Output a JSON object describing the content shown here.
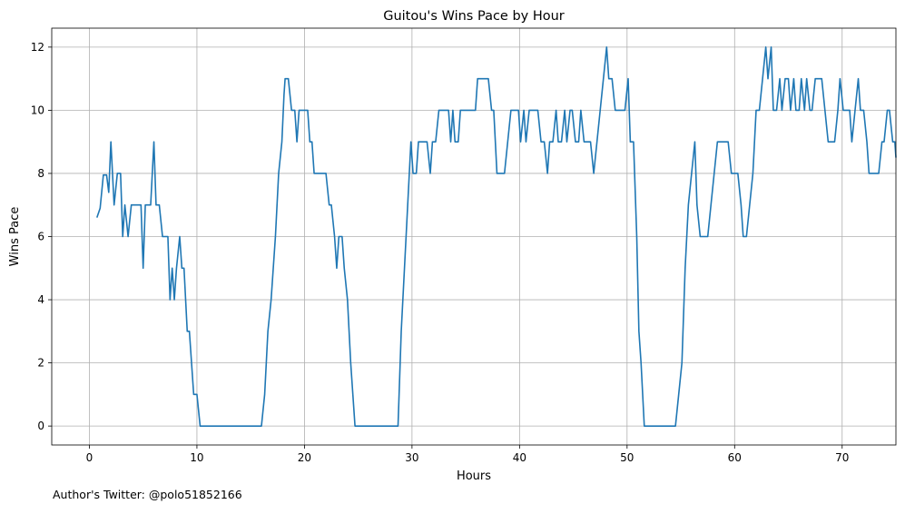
{
  "footnote": "Author's Twitter: @polo51852166",
  "chart_data": {
    "type": "line",
    "title": "Guitou's Wins Pace by Hour",
    "xlabel": "Hours",
    "ylabel": "Wins Pace",
    "xlim": [
      -3.5,
      75.0
    ],
    "ylim": [
      -0.6,
      12.6
    ],
    "xticks": [
      0,
      10,
      20,
      30,
      40,
      50,
      60,
      70
    ],
    "yticks": [
      0,
      2,
      4,
      6,
      8,
      10,
      12
    ],
    "grid": true,
    "series": [
      {
        "color": "#1f77b4",
        "points": [
          [
            0.7,
            6.6
          ],
          [
            1.0,
            6.9
          ],
          [
            1.3,
            7.95
          ],
          [
            1.6,
            7.95
          ],
          [
            1.8,
            7.4
          ],
          [
            2.0,
            9.0
          ],
          [
            2.3,
            7.0
          ],
          [
            2.6,
            8.0
          ],
          [
            2.9,
            8.0
          ],
          [
            3.1,
            6.0
          ],
          [
            3.3,
            7.0
          ],
          [
            3.6,
            6.0
          ],
          [
            3.9,
            7.0
          ],
          [
            4.2,
            7.0
          ],
          [
            4.5,
            7.0
          ],
          [
            4.8,
            7.0
          ],
          [
            5.0,
            5.0
          ],
          [
            5.2,
            7.0
          ],
          [
            5.5,
            7.0
          ],
          [
            5.7,
            7.0
          ],
          [
            6.0,
            9.0
          ],
          [
            6.2,
            7.0
          ],
          [
            6.5,
            7.0
          ],
          [
            6.8,
            6.0
          ],
          [
            7.0,
            6.0
          ],
          [
            7.3,
            6.0
          ],
          [
            7.5,
            4.0
          ],
          [
            7.7,
            5.0
          ],
          [
            7.9,
            4.0
          ],
          [
            8.1,
            5.0
          ],
          [
            8.4,
            6.0
          ],
          [
            8.6,
            5.0
          ],
          [
            8.8,
            5.0
          ],
          [
            9.1,
            3.0
          ],
          [
            9.3,
            3.0
          ],
          [
            9.5,
            2.0
          ],
          [
            9.7,
            1.0
          ],
          [
            10.0,
            1.0
          ],
          [
            10.3,
            0.0
          ],
          [
            16.0,
            0.0
          ],
          [
            16.3,
            1.0
          ],
          [
            16.6,
            3.0
          ],
          [
            16.9,
            4.0
          ],
          [
            17.3,
            6.0
          ],
          [
            17.6,
            8.0
          ],
          [
            17.9,
            9.0
          ],
          [
            18.1,
            10.5
          ],
          [
            18.2,
            11.0
          ],
          [
            18.5,
            11.0
          ],
          [
            18.8,
            10.0
          ],
          [
            19.1,
            10.0
          ],
          [
            19.3,
            9.0
          ],
          [
            19.5,
            10.0
          ],
          [
            19.8,
            10.0
          ],
          [
            20.1,
            10.0
          ],
          [
            20.3,
            10.0
          ],
          [
            20.5,
            9.0
          ],
          [
            20.7,
            9.0
          ],
          [
            20.9,
            8.0
          ],
          [
            21.3,
            8.0
          ],
          [
            21.7,
            8.0
          ],
          [
            22.0,
            8.0
          ],
          [
            22.3,
            7.0
          ],
          [
            22.5,
            7.0
          ],
          [
            22.8,
            6.0
          ],
          [
            23.0,
            5.0
          ],
          [
            23.2,
            6.0
          ],
          [
            23.5,
            6.0
          ],
          [
            23.7,
            5.0
          ],
          [
            24.0,
            4.0
          ],
          [
            24.3,
            2.0
          ],
          [
            24.5,
            1.0
          ],
          [
            24.7,
            0.0
          ],
          [
            28.7,
            0.0
          ],
          [
            29.0,
            3.0
          ],
          [
            29.3,
            5.0
          ],
          [
            29.6,
            7.0
          ],
          [
            29.9,
            9.0
          ],
          [
            30.1,
            8.0
          ],
          [
            30.4,
            8.0
          ],
          [
            30.6,
            9.0
          ],
          [
            31.0,
            9.0
          ],
          [
            31.4,
            9.0
          ],
          [
            31.7,
            8.0
          ],
          [
            31.9,
            9.0
          ],
          [
            32.2,
            9.0
          ],
          [
            32.5,
            10.0
          ],
          [
            32.8,
            10.0
          ],
          [
            33.1,
            10.0
          ],
          [
            33.4,
            10.0
          ],
          [
            33.6,
            9.0
          ],
          [
            33.8,
            10.0
          ],
          [
            34.0,
            9.0
          ],
          [
            34.3,
            9.0
          ],
          [
            34.5,
            10.0
          ],
          [
            34.8,
            10.0
          ],
          [
            35.2,
            10.0
          ],
          [
            35.6,
            10.0
          ],
          [
            35.9,
            10.0
          ],
          [
            36.1,
            11.0
          ],
          [
            36.4,
            11.0
          ],
          [
            36.8,
            11.0
          ],
          [
            37.1,
            11.0
          ],
          [
            37.4,
            10.0
          ],
          [
            37.6,
            10.0
          ],
          [
            37.9,
            8.0
          ],
          [
            38.3,
            8.0
          ],
          [
            38.6,
            8.0
          ],
          [
            38.9,
            9.0
          ],
          [
            39.2,
            10.0
          ],
          [
            39.6,
            10.0
          ],
          [
            39.9,
            10.0
          ],
          [
            40.1,
            9.0
          ],
          [
            40.4,
            10.0
          ],
          [
            40.6,
            9.0
          ],
          [
            40.9,
            10.0
          ],
          [
            41.1,
            10.0
          ],
          [
            41.4,
            10.0
          ],
          [
            41.7,
            10.0
          ],
          [
            42.0,
            9.0
          ],
          [
            42.3,
            9.0
          ],
          [
            42.6,
            8.0
          ],
          [
            42.8,
            9.0
          ],
          [
            43.1,
            9.0
          ],
          [
            43.4,
            10.0
          ],
          [
            43.6,
            9.0
          ],
          [
            43.9,
            9.0
          ],
          [
            44.2,
            10.0
          ],
          [
            44.4,
            9.0
          ],
          [
            44.7,
            10.0
          ],
          [
            44.9,
            10.0
          ],
          [
            45.2,
            9.0
          ],
          [
            45.5,
            9.0
          ],
          [
            45.7,
            10.0
          ],
          [
            46.0,
            9.0
          ],
          [
            46.3,
            9.0
          ],
          [
            46.6,
            9.0
          ],
          [
            46.9,
            8.0
          ],
          [
            47.2,
            9.0
          ],
          [
            47.5,
            10.0
          ],
          [
            47.8,
            11.0
          ],
          [
            48.1,
            12.0
          ],
          [
            48.3,
            11.0
          ],
          [
            48.6,
            11.0
          ],
          [
            48.9,
            10.0
          ],
          [
            49.2,
            10.0
          ],
          [
            49.5,
            10.0
          ],
          [
            49.8,
            10.0
          ],
          [
            50.1,
            11.0
          ],
          [
            50.3,
            9.0
          ],
          [
            50.6,
            9.0
          ],
          [
            50.9,
            6.0
          ],
          [
            51.1,
            3.0
          ],
          [
            51.3,
            2.0
          ],
          [
            51.6,
            0.0
          ],
          [
            52.0,
            0.0
          ],
          [
            54.5,
            0.0
          ],
          [
            54.8,
            1.0
          ],
          [
            55.1,
            2.0
          ],
          [
            55.4,
            5.0
          ],
          [
            55.7,
            7.0
          ],
          [
            56.0,
            8.0
          ],
          [
            56.3,
            9.0
          ],
          [
            56.5,
            7.0
          ],
          [
            56.8,
            6.0
          ],
          [
            57.2,
            6.0
          ],
          [
            57.5,
            6.0
          ],
          [
            57.8,
            7.0
          ],
          [
            58.1,
            8.0
          ],
          [
            58.4,
            9.0
          ],
          [
            58.7,
            9.0
          ],
          [
            59.0,
            9.0
          ],
          [
            59.4,
            9.0
          ],
          [
            59.7,
            8.0
          ],
          [
            60.0,
            8.0
          ],
          [
            60.3,
            8.0
          ],
          [
            60.6,
            7.0
          ],
          [
            60.8,
            6.0
          ],
          [
            61.1,
            6.0
          ],
          [
            61.4,
            7.0
          ],
          [
            61.7,
            8.0
          ],
          [
            62.0,
            10.0
          ],
          [
            62.3,
            10.0
          ],
          [
            62.6,
            11.0
          ],
          [
            62.9,
            12.0
          ],
          [
            63.1,
            11.0
          ],
          [
            63.4,
            12.0
          ],
          [
            63.6,
            10.0
          ],
          [
            63.9,
            10.0
          ],
          [
            64.2,
            11.0
          ],
          [
            64.4,
            10.0
          ],
          [
            64.7,
            11.0
          ],
          [
            65.0,
            11.0
          ],
          [
            65.2,
            10.0
          ],
          [
            65.5,
            11.0
          ],
          [
            65.7,
            10.0
          ],
          [
            66.0,
            10.0
          ],
          [
            66.2,
            11.0
          ],
          [
            66.5,
            10.0
          ],
          [
            66.7,
            11.0
          ],
          [
            67.0,
            10.0
          ],
          [
            67.2,
            10.0
          ],
          [
            67.5,
            11.0
          ],
          [
            67.8,
            11.0
          ],
          [
            68.1,
            11.0
          ],
          [
            68.4,
            10.0
          ],
          [
            68.7,
            9.0
          ],
          [
            69.0,
            9.0
          ],
          [
            69.3,
            9.0
          ],
          [
            69.6,
            10.0
          ],
          [
            69.8,
            11.0
          ],
          [
            70.1,
            10.0
          ],
          [
            70.4,
            10.0
          ],
          [
            70.7,
            10.0
          ],
          [
            70.9,
            9.0
          ],
          [
            71.2,
            10.0
          ],
          [
            71.5,
            11.0
          ],
          [
            71.7,
            10.0
          ],
          [
            72.0,
            10.0
          ],
          [
            72.3,
            9.0
          ],
          [
            72.5,
            8.0
          ],
          [
            72.8,
            8.0
          ],
          [
            73.1,
            8.0
          ],
          [
            73.4,
            8.0
          ],
          [
            73.7,
            9.0
          ],
          [
            73.9,
            9.0
          ],
          [
            74.2,
            10.0
          ],
          [
            74.4,
            10.0
          ],
          [
            74.7,
            9.0
          ],
          [
            74.9,
            9.0
          ],
          [
            75.0,
            8.5
          ]
        ]
      }
    ]
  }
}
